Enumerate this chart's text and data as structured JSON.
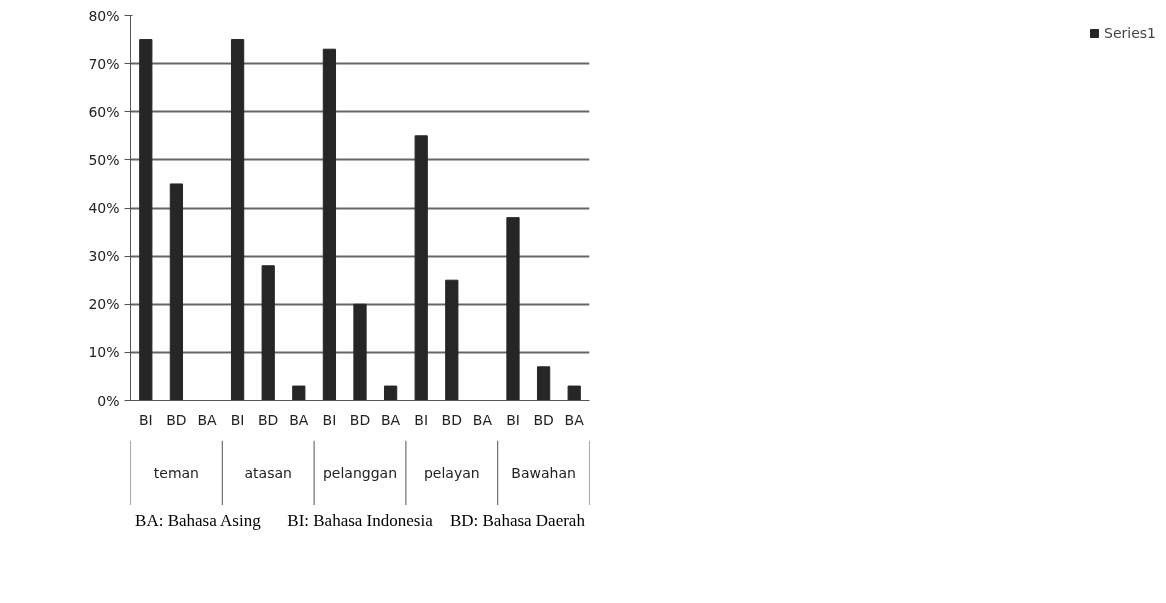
{
  "chart_data": {
    "type": "bar",
    "categories": [
      "BI",
      "BD",
      "BA",
      "BI",
      "BD",
      "BA",
      "BI",
      "BD",
      "BA",
      "BI",
      "BD",
      "BA",
      "BI",
      "BD",
      "BA"
    ],
    "series": [
      {
        "name": "Series1",
        "color": "#262626",
        "values": [
          75,
          45,
          0,
          75,
          28,
          3,
          73,
          20,
          3,
          55,
          25,
          0,
          38,
          7,
          3
        ]
      }
    ],
    "ylim": [
      0,
      80
    ],
    "yticks": [
      {
        "value": 0,
        "label": "0%"
      },
      {
        "value": 10,
        "label": "10%"
      },
      {
        "value": 20,
        "label": "20%"
      },
      {
        "value": 30,
        "label": "30%"
      },
      {
        "value": 40,
        "label": "40%"
      },
      {
        "value": 50,
        "label": "50%"
      },
      {
        "value": 60,
        "label": "60%"
      },
      {
        "value": 70,
        "label": "70%"
      },
      {
        "value": 80,
        "label": "80%"
      }
    ],
    "grid": "y",
    "legend": "right",
    "annotations": [
      "teman",
      "atasan",
      "pelanggan",
      "pelayan",
      "Bawahan",
      "BA: Bahasa Asing",
      "BI: Bahasa Indonesia",
      "BD: Bahasa Daerah"
    ]
  }
}
